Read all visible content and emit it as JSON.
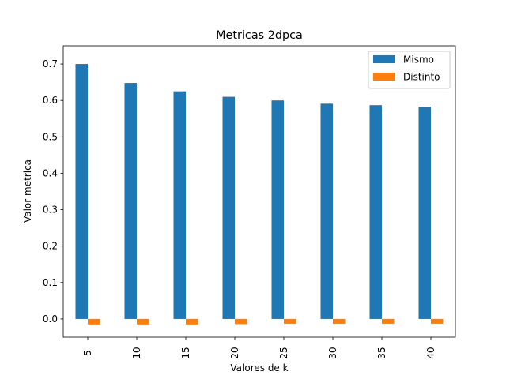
{
  "chart_data": {
    "type": "bar",
    "title": "Metricas 2dpca",
    "xlabel": "Valores de k",
    "ylabel": "Valor metrica",
    "categories": [
      "5",
      "10",
      "15",
      "20",
      "25",
      "30",
      "35",
      "40"
    ],
    "series": [
      {
        "name": "Mismo",
        "color": "#1f77b4",
        "values": [
          0.7,
          0.648,
          0.625,
          0.61,
          0.6,
          0.591,
          0.587,
          0.583
        ]
      },
      {
        "name": "Distinto",
        "color": "#ff7f0e",
        "values": [
          -0.015,
          -0.015,
          -0.015,
          -0.014,
          -0.013,
          -0.013,
          -0.013,
          -0.013
        ]
      }
    ],
    "ylim": [
      -0.05,
      0.75
    ],
    "yticks": [
      "0.0",
      "0.1",
      "0.2",
      "0.3",
      "0.4",
      "0.5",
      "0.6",
      "0.7"
    ],
    "grid": false,
    "legend_position": "top-right"
  }
}
